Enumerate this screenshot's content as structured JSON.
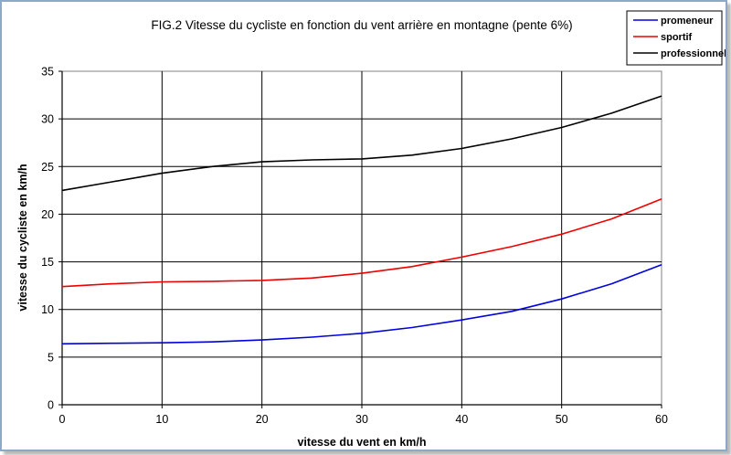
{
  "chart_data": {
    "type": "line",
    "title": "FIG.2 Vitesse du cycliste en fonction du vent arrière en montagne (pente 6%)",
    "xlabel": "vitesse du vent en km/h",
    "ylabel": "vitesse du cycliste en km/h",
    "xlim": [
      0,
      60
    ],
    "ylim": [
      0,
      35
    ],
    "xticks": [
      0,
      10,
      20,
      30,
      40,
      50,
      60
    ],
    "yticks": [
      0,
      5,
      10,
      15,
      20,
      25,
      30,
      35
    ],
    "grid": true,
    "legend_position": "top-right",
    "x": [
      0,
      5,
      10,
      15,
      20,
      25,
      30,
      35,
      40,
      45,
      50,
      55,
      60
    ],
    "series": [
      {
        "name": "promeneur",
        "color": "#0000dd",
        "values": [
          6.4,
          6.45,
          6.5,
          6.6,
          6.8,
          7.1,
          7.5,
          8.1,
          8.9,
          9.8,
          11.1,
          12.7,
          14.7
        ]
      },
      {
        "name": "sportif",
        "color": "#ee0000",
        "values": [
          12.4,
          12.7,
          12.9,
          12.95,
          13.05,
          13.3,
          13.8,
          14.5,
          15.5,
          16.6,
          17.9,
          19.5,
          21.6
        ]
      },
      {
        "name": "professionnel",
        "color": "#000000",
        "values": [
          22.5,
          23.4,
          24.3,
          25.0,
          25.5,
          25.7,
          25.8,
          26.2,
          26.9,
          27.9,
          29.1,
          30.6,
          32.4
        ]
      }
    ]
  }
}
